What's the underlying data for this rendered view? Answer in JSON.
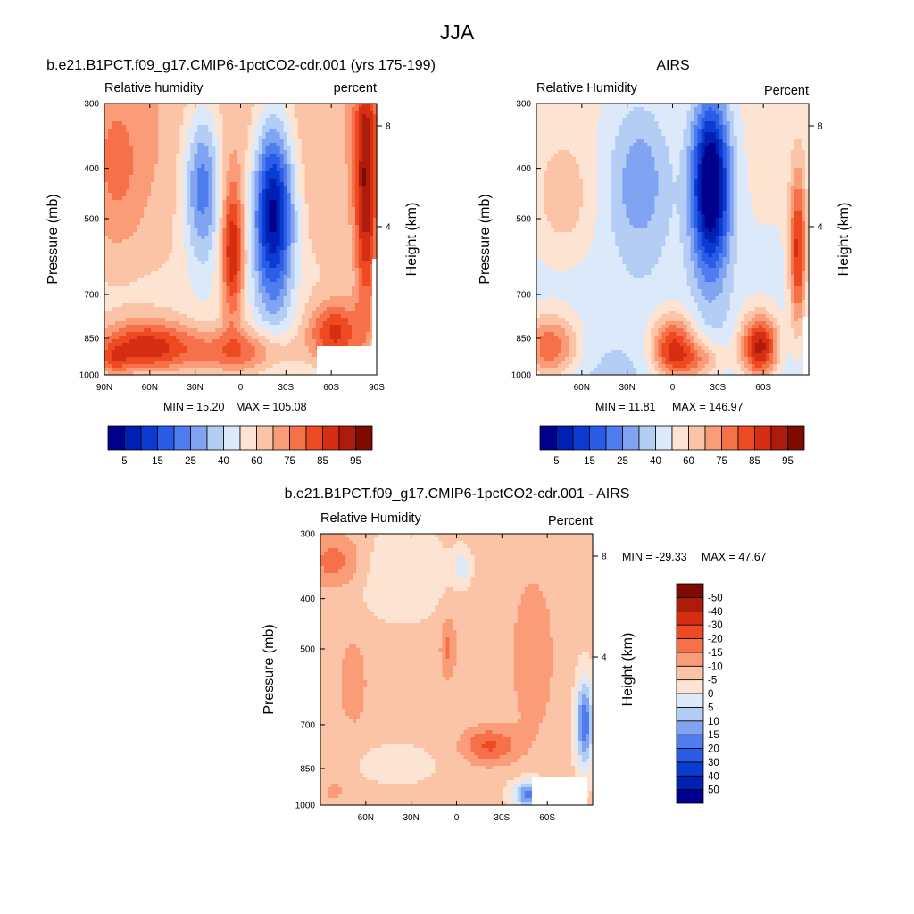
{
  "figure": {
    "title": "JJA"
  },
  "chart_data": [
    {
      "type": "heatmap",
      "title": "b.e21.B1PCT.f09_g17.CMIP6-1pctCO2-cdr.001 (yrs 175-199)",
      "left_label": "Relative humidity",
      "right_label": "percent",
      "ylabel": "Pressure (mb)",
      "ylabel_right": "Height (km)",
      "x_ticks": [
        "90N",
        "60N",
        "30N",
        "0",
        "30S",
        "60S",
        "90S"
      ],
      "y_ticks": [
        "300",
        "400",
        "500",
        "700",
        "850",
        "1000"
      ],
      "y_right_ticks": [
        "8",
        "4"
      ],
      "ylim": [
        1000,
        300
      ],
      "min_label": "MIN =  15.20",
      "max_label": "MAX = 105.08",
      "min": 15.2,
      "max": 105.08,
      "colorbar": {
        "orientation": "horizontal",
        "levels": [
          5,
          10,
          15,
          20,
          25,
          30,
          40,
          50,
          60,
          65,
          75,
          80,
          85,
          90,
          95
        ],
        "labels": [
          "5",
          "15",
          "25",
          "40",
          "60",
          "75",
          "85",
          "95"
        ]
      }
    },
    {
      "type": "heatmap",
      "title": "AIRS",
      "left_label": "Relative Humidity",
      "right_label": "Percent",
      "ylabel": "Pressure (mb)",
      "ylabel_right": "Height (km)",
      "x_ticks": [
        "60N",
        "30N",
        "0",
        "30S",
        "60S"
      ],
      "y_ticks": [
        "300",
        "400",
        "500",
        "700",
        "850",
        "1000"
      ],
      "y_right_ticks": [
        "8",
        "4"
      ],
      "ylim": [
        1000,
        300
      ],
      "min_label": "MIN =  11.81",
      "max_label": "MAX = 146.97",
      "min": 11.81,
      "max": 146.97,
      "colorbar": {
        "orientation": "horizontal",
        "levels": [
          5,
          10,
          15,
          20,
          25,
          30,
          40,
          50,
          60,
          65,
          75,
          80,
          85,
          90,
          95
        ],
        "labels": [
          "5",
          "15",
          "25",
          "40",
          "60",
          "75",
          "85",
          "95"
        ]
      }
    },
    {
      "type": "heatmap",
      "title": "b.e21.B1PCT.f09_g17.CMIP6-1pctCO2-cdr.001 - AIRS",
      "left_label": "Relative Humidity",
      "right_label": "Percent",
      "ylabel": "Pressure (mb)",
      "ylabel_right": "Height (km)",
      "x_ticks": [
        "60N",
        "30N",
        "0",
        "30S",
        "60S"
      ],
      "y_ticks": [
        "300",
        "400",
        "500",
        "700",
        "850",
        "1000"
      ],
      "y_right_ticks": [
        "8",
        "4"
      ],
      "ylim": [
        1000,
        300
      ],
      "min_label": "MIN = -29.33",
      "max_label": "MAX =  47.67",
      "min": -29.33,
      "max": 47.67,
      "colorbar": {
        "orientation": "vertical",
        "levels": [
          -50,
          -40,
          -30,
          -20,
          -15,
          -10,
          -5,
          0,
          5,
          10,
          15,
          20,
          30,
          40,
          50
        ],
        "labels": [
          "-50",
          "-40",
          "-30",
          "-20",
          "-15",
          "-10",
          "-5",
          "0",
          "5",
          "10",
          "15",
          "20",
          "30",
          "40",
          "50"
        ]
      }
    }
  ],
  "colors": {
    "palette": [
      "#00008c",
      "#0020b4",
      "#0a3cd2",
      "#2a5ce8",
      "#4f7df0",
      "#80a4f2",
      "#b4cdf5",
      "#dce9fa",
      "#fde3d2",
      "#fcc4a6",
      "#fa9c78",
      "#f6704a",
      "#ee4a22",
      "#d52e12",
      "#ad1c0a",
      "#7f0a02"
    ],
    "void": "#ffffff"
  }
}
